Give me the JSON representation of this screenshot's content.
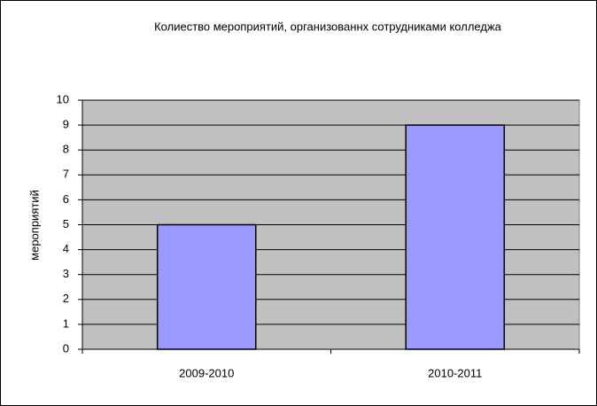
{
  "chart_data": {
    "type": "bar",
    "title": "Колиество мероприятий, организованнх сотрудниками колледжа",
    "y_label": "мероприятий",
    "categories": [
      "2009-2010",
      "2010-2011"
    ],
    "values": [
      5,
      9
    ],
    "color": "#9999ff",
    "ylim": [
      0,
      10
    ],
    "yticks": [
      0,
      1,
      2,
      3,
      4,
      5,
      6,
      7,
      8,
      9,
      10
    ],
    "grid": true
  }
}
